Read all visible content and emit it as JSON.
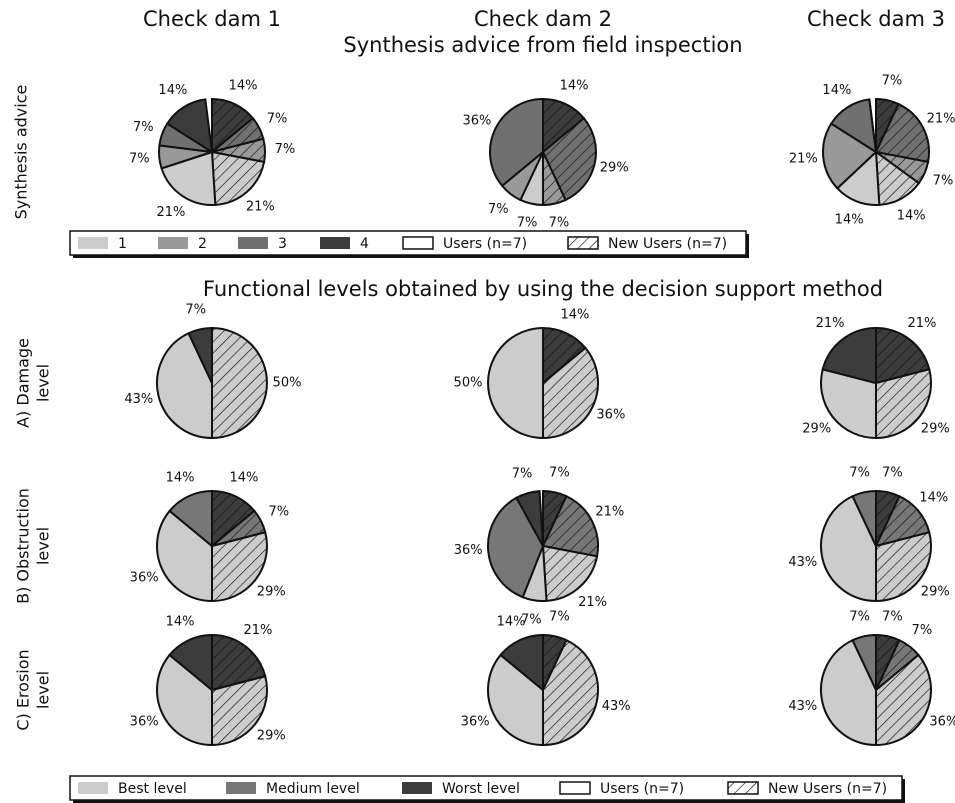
{
  "column_titles": [
    "Check dam 1",
    "Check dam 2",
    "Check dam 3"
  ],
  "synthesis": {
    "title": "Synthesis advice from field inspection",
    "row_label": [
      "Synthesis advice"
    ],
    "categories": [
      "1",
      "2",
      "3",
      "4"
    ],
    "colors": [
      "#cccccc",
      "#999999",
      "#707070",
      "#3c3c3c"
    ]
  },
  "functional": {
    "title": "Functional levels obtained by using the decision support method",
    "row_labels": [
      [
        "A) Damage",
        "level"
      ],
      [
        "B) Obstruction",
        "level"
      ],
      [
        "C) Erosion",
        "level"
      ]
    ],
    "categories": [
      "Best level",
      "Medium level",
      "Worst level"
    ],
    "colors": [
      "#cccccc",
      "#777777",
      "#3c3c3c"
    ]
  },
  "groups": [
    "Users (n=7)",
    "New Users (n=7)"
  ],
  "chart_data": [
    {
      "type": "pie",
      "users": [
        21,
        7,
        7,
        14
      ],
      "users_labels": [
        "21%",
        "7%",
        "7%",
        "14%"
      ],
      "new_users": [
        21,
        7,
        7,
        14
      ],
      "new_users_labels": [
        "21%",
        "7%",
        "7%",
        "14%"
      ]
    },
    {
      "type": "pie",
      "users": [
        7,
        7,
        36,
        0
      ],
      "users_labels": [
        "7%",
        "7%",
        "36%",
        null
      ],
      "new_users": [
        0,
        7,
        29,
        14
      ],
      "new_users_labels": [
        null,
        "7%",
        "29%",
        "14%"
      ]
    },
    {
      "type": "pie",
      "users": [
        14,
        21,
        14,
        0
      ],
      "users_labels": [
        "14%",
        "21%",
        "14%",
        null
      ],
      "new_users": [
        14,
        7,
        21,
        7
      ],
      "new_users_labels": [
        "14%",
        "7%",
        "21%",
        "7%"
      ]
    },
    {
      "type": "pie",
      "users": [
        43,
        0,
        7
      ],
      "users_labels": [
        "43%",
        null,
        "7%"
      ],
      "new_users": [
        50,
        0,
        0
      ],
      "new_users_labels": [
        "50%",
        null,
        null
      ]
    },
    {
      "type": "pie",
      "users": [
        50,
        0,
        0
      ],
      "users_labels": [
        "50%",
        null,
        null
      ],
      "new_users": [
        36,
        0,
        14
      ],
      "new_users_labels": [
        "36%",
        null,
        "14%"
      ]
    },
    {
      "type": "pie",
      "users": [
        29,
        0,
        21
      ],
      "users_labels": [
        "29%",
        null,
        "21%"
      ],
      "new_users": [
        29,
        0,
        21
      ],
      "new_users_labels": [
        "29%",
        null,
        "21%"
      ]
    },
    {
      "type": "pie",
      "users": [
        36,
        14,
        0
      ],
      "users_labels": [
        "36%",
        "14%",
        null
      ],
      "new_users": [
        29,
        7,
        14
      ],
      "new_users_labels": [
        "29%",
        "7%",
        "14%"
      ]
    },
    {
      "type": "pie",
      "users": [
        7,
        36,
        7
      ],
      "users_labels": [
        "7%",
        "36%",
        "7%"
      ],
      "new_users": [
        21,
        21,
        7
      ],
      "new_users_labels": [
        "21%",
        "21%",
        "7%"
      ]
    },
    {
      "type": "pie",
      "users": [
        43,
        7,
        0
      ],
      "users_labels": [
        "43%",
        "7%",
        null
      ],
      "new_users": [
        29,
        14,
        7
      ],
      "new_users_labels": [
        "29%",
        "14%",
        "7%"
      ]
    },
    {
      "type": "pie",
      "users": [
        36,
        0,
        14
      ],
      "users_labels": [
        "36%",
        null,
        "14%"
      ],
      "new_users": [
        29,
        0,
        21
      ],
      "new_users_labels": [
        "29%",
        null,
        "21%"
      ]
    },
    {
      "type": "pie",
      "users": [
        36,
        0,
        14
      ],
      "users_labels": [
        "36%",
        null,
        "14%"
      ],
      "new_users": [
        43,
        0,
        7
      ],
      "new_users_labels": [
        "43%",
        null,
        "7%"
      ]
    },
    {
      "type": "pie",
      "users": [
        43,
        7,
        0
      ],
      "users_labels": [
        "43%",
        "7%",
        null
      ],
      "new_users": [
        36,
        7,
        7
      ],
      "new_users_labels": [
        "36%",
        "7%",
        "7%"
      ]
    }
  ]
}
